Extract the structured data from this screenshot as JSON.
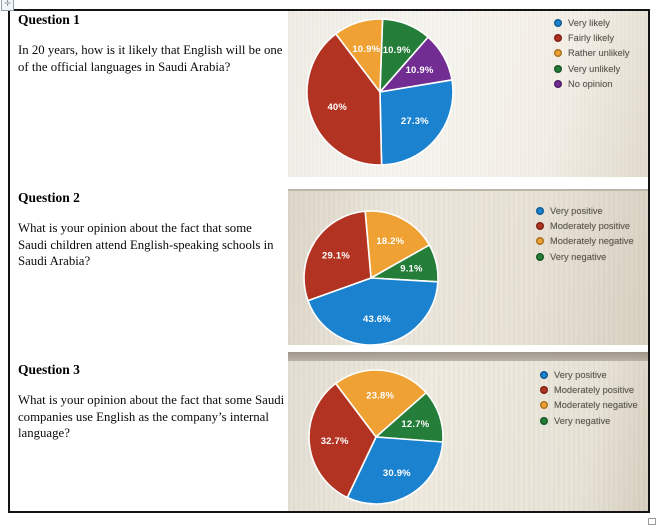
{
  "document": {
    "questions": [
      {
        "title": "Question 1",
        "text": "In 20 years, how is it likely that English will be one of the official languages in Saudi Arabia?"
      },
      {
        "title": "Question 2",
        "text": "What is your opinion about the fact that some Saudi children attend English-speaking schools in Saudi Arabia?"
      },
      {
        "title": "Question 3",
        "text": "What is your opinion about the fact that some Saudi companies use English as the company’s internal language?"
      }
    ]
  },
  "icons": {
    "move_handle_glyph": "✛"
  },
  "colors": {
    "blue": "#1b82cf",
    "red": "#b23321",
    "orange": "#f0a133",
    "green": "#247d38",
    "purple": "#722d92"
  },
  "chart_data": [
    {
      "type": "pie",
      "question": "Question 1",
      "legend_position": "right",
      "grid": false,
      "start_angle": 2,
      "legend": [
        {
          "label": "Very likely",
          "color": "#1b82cf"
        },
        {
          "label": "Fairly likely",
          "color": "#b23321"
        },
        {
          "label": "Rather unlikely",
          "color": "#f0a133"
        },
        {
          "label": "Very unlikely",
          "color": "#247d38"
        },
        {
          "label": "No opinion",
          "color": "#722d92"
        }
      ],
      "slices": [
        {
          "category": "Very unlikely",
          "value": 10.9,
          "display": "10.9%",
          "color": "#247d38"
        },
        {
          "category": "No opinion",
          "value": 10.9,
          "display": "10.9%",
          "color": "#722d92"
        },
        {
          "category": "Very likely",
          "value": 27.3,
          "display": "27.3%",
          "color": "#1b82cf"
        },
        {
          "category": "Fairly likely",
          "value": 40,
          "display": "40%",
          "color": "#b23321"
        },
        {
          "category": "Rather unlikely",
          "value": 10.9,
          "display": "10.9%",
          "color": "#f0a133"
        }
      ]
    },
    {
      "type": "pie",
      "question": "Question 2",
      "legend_position": "right",
      "grid": false,
      "start_angle": -5,
      "legend": [
        {
          "label": "Very positive",
          "color": "#1b82cf"
        },
        {
          "label": "Moderately positive",
          "color": "#b23321"
        },
        {
          "label": "Moderately negative",
          "color": "#f0a133"
        },
        {
          "label": "Very negative",
          "color": "#247d38"
        }
      ],
      "slices": [
        {
          "category": "Moderately negative",
          "value": 18.2,
          "display": "18.2%",
          "color": "#f0a133"
        },
        {
          "category": "Very negative",
          "value": 9.1,
          "display": "9.1%",
          "color": "#247d38"
        },
        {
          "category": "Very positive",
          "value": 43.6,
          "display": "43.6%",
          "color": "#1b82cf"
        },
        {
          "category": "Moderately positive",
          "value": 29.1,
          "display": "29.1%",
          "color": "#b23321"
        }
      ]
    },
    {
      "type": "pie",
      "question": "Question 3",
      "legend_position": "right",
      "grid": false,
      "start_angle": -37,
      "legend": [
        {
          "label": "Very positive",
          "color": "#1b82cf"
        },
        {
          "label": "Moderately positive",
          "color": "#b23321"
        },
        {
          "label": "Moderately negative",
          "color": "#f0a133"
        },
        {
          "label": "Very negative",
          "color": "#247d38"
        }
      ],
      "slices": [
        {
          "category": "Moderately negative",
          "value": 23.8,
          "display": "23.8%",
          "color": "#f0a133"
        },
        {
          "category": "Very negative",
          "value": 12.7,
          "display": "12.7%",
          "color": "#247d38"
        },
        {
          "category": "Very positive",
          "value": 30.9,
          "display": "30.9%",
          "color": "#1b82cf"
        },
        {
          "category": "Moderately positive",
          "value": 32.7,
          "display": "32.7%",
          "color": "#b23321"
        }
      ]
    }
  ]
}
